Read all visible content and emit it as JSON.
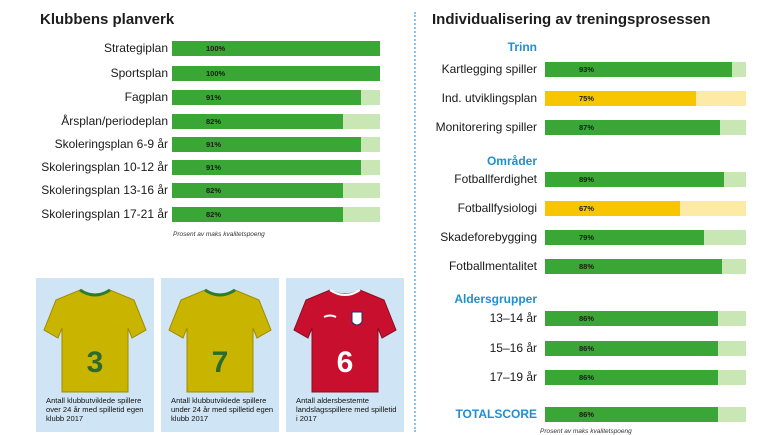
{
  "colors": {
    "green": "#3aa635",
    "green_light": "#c9e7b4",
    "yellow": "#f7c600",
    "yellow_light": "#fdeaa5",
    "section_blue": "#1f8fd1"
  },
  "left_panel": {
    "title": "Klubbens planverk",
    "caption": "Prosent av maks kvalitetspoeng"
  },
  "right_panel": {
    "title": "Individualisering av treningsprosessen",
    "caption": "Prosent av maks kvalitetspoeng"
  },
  "chart_data": [
    {
      "type": "bar",
      "orientation": "horizontal",
      "title": "Klubbens planverk",
      "categories": [
        "Strategiplan",
        "Sportsplan",
        "Fagplan",
        "Årsplan/periodeplan",
        "Skoleringsplan 6-9 år",
        "Skoleringsplan 10-12 år",
        "Skoleringsplan 13-16 år",
        "Skoleringsplan 17-21 år"
      ],
      "values": [
        100,
        100,
        91,
        82,
        91,
        91,
        82,
        82
      ],
      "value_labels": [
        "100%",
        "100%",
        "91%",
        "82%",
        "91%",
        "91%",
        "82%",
        "82%"
      ],
      "colors": [
        "green",
        "green",
        "green",
        "green",
        "green",
        "green",
        "green",
        "green"
      ],
      "xlim": [
        0,
        100
      ],
      "xlabel": "Prosent av maks kvalitetspoeng"
    },
    {
      "type": "bar",
      "orientation": "horizontal",
      "title": "Individualisering av treningsprosessen",
      "groups": [
        {
          "name": "Trinn",
          "categories": [
            "Kartlegging spiller",
            "Ind. utviklingsplan",
            "Monitorering spiller"
          ],
          "values": [
            93,
            75,
            87
          ],
          "value_labels": [
            "93%",
            "75%",
            "87%"
          ],
          "colors": [
            "green",
            "yellow",
            "green"
          ]
        },
        {
          "name": "Områder",
          "categories": [
            "Fotballferdighet",
            "Fotballfysiologi",
            "Skadeforebygging",
            "Fotballmentalitet"
          ],
          "values": [
            89,
            67,
            79,
            88
          ],
          "value_labels": [
            "89%",
            "67%",
            "79%",
            "88%"
          ],
          "colors": [
            "green",
            "yellow",
            "green",
            "green"
          ]
        },
        {
          "name": "Aldersgrupper",
          "categories": [
            "13–14 år",
            "15–16 år",
            "17–19 år"
          ],
          "values": [
            86,
            86,
            86
          ],
          "value_labels": [
            "86%",
            "86%",
            "86%"
          ],
          "colors": [
            "green",
            "green",
            "green"
          ]
        },
        {
          "name": "",
          "categories": [
            "TOTALSCORE"
          ],
          "values": [
            86
          ],
          "value_labels": [
            "86%"
          ],
          "colors": [
            "green"
          ]
        }
      ],
      "xlim": [
        0,
        100
      ],
      "xlabel": "Prosent av maks kvalitetspoeng"
    }
  ],
  "cards": [
    {
      "shirt": "yellow-jersey",
      "number": "3",
      "text": "Antall klubbutviklede spillere over 24 år med spilletid egen klubb 2017"
    },
    {
      "shirt": "yellow-jersey",
      "number": "7",
      "text": "Antall klubbutviklede spillere under 24 år med spilletid egen klubb 2017"
    },
    {
      "shirt": "red-national-jersey",
      "number": "6",
      "text": "Antall aldersbestemte landslagsspillere med spilletid i 2017"
    }
  ]
}
